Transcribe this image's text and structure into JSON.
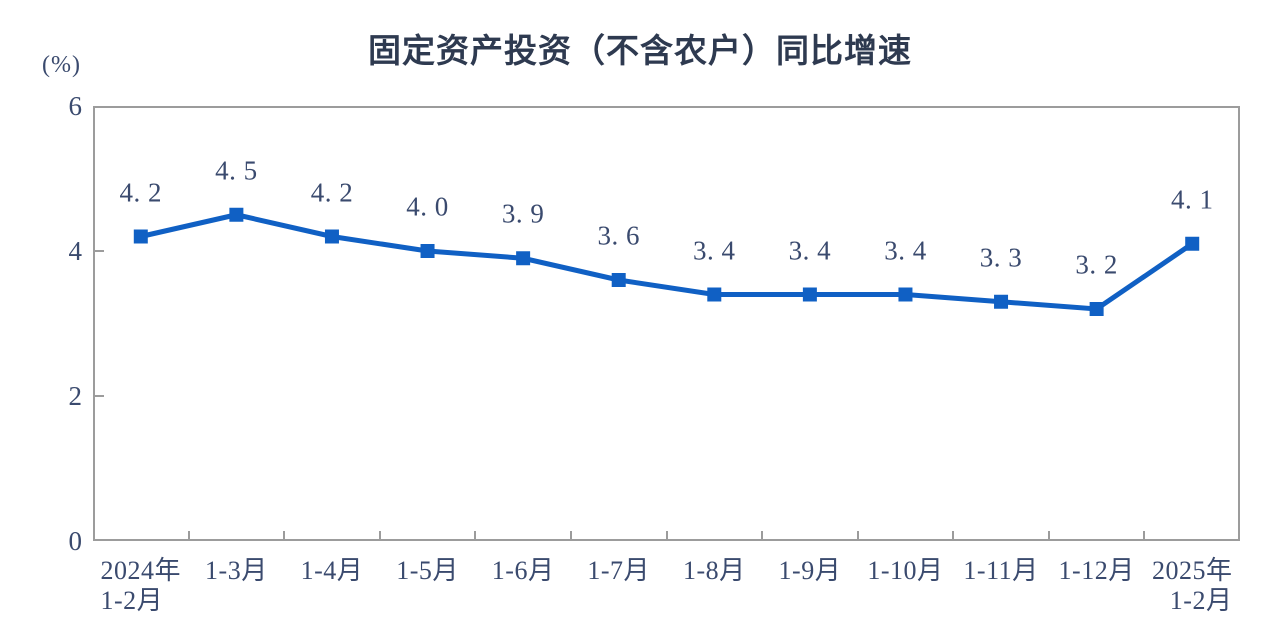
{
  "chart": {
    "title": "固定资产投资（不含农户）同比增速",
    "unit_label": "(%)"
  },
  "colors": {
    "line": "#1060c4",
    "marker": "#1060c4",
    "label_text": "#3a4a6e",
    "title_text": "#2e3a50",
    "axis": "#9c9c9c"
  },
  "chart_data": {
    "type": "line",
    "title": "固定资产投资（不含农户）同比增速",
    "unit": "%",
    "categories": [
      "2024年\n1-2月",
      "1-3月",
      "1-4月",
      "1-5月",
      "1-6月",
      "1-7月",
      "1-8月",
      "1-9月",
      "1-10月",
      "1-11月",
      "1-12月",
      "2025年\n1-2月"
    ],
    "values": [
      4.2,
      4.5,
      4.2,
      4.0,
      3.9,
      3.6,
      3.4,
      3.4,
      3.4,
      3.3,
      3.2,
      4.1
    ],
    "point_labels": [
      "4. 2",
      "4. 5",
      "4. 2",
      "4. 0",
      "3. 9",
      "3. 6",
      "3. 4",
      "3. 4",
      "3. 4",
      "3. 3",
      "3. 2",
      "4. 1"
    ],
    "ylim": [
      0,
      6
    ],
    "yticks": [
      0,
      2,
      4,
      6
    ],
    "grid": false,
    "legend": false,
    "marker": "square"
  }
}
